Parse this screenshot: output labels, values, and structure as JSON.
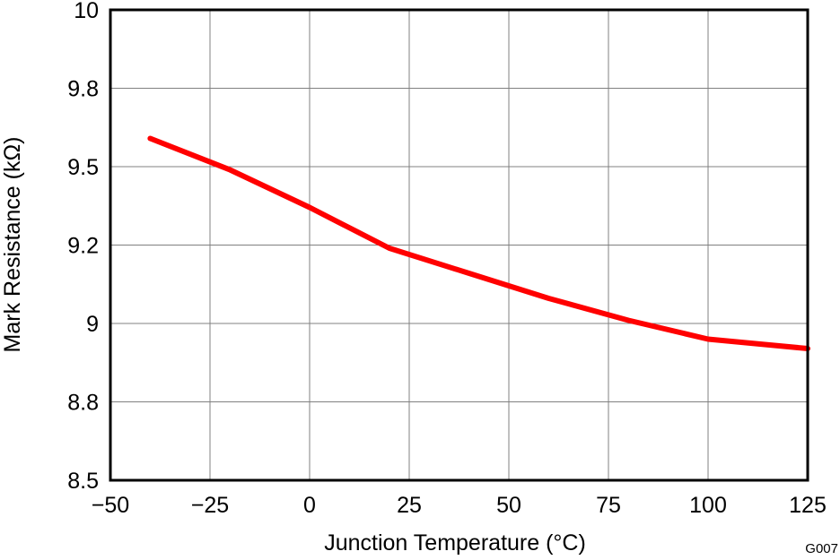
{
  "chart_data": {
    "type": "line",
    "title": "",
    "xlabel": "Junction Temperature (°C)",
    "ylabel": "Mark Resistance (kΩ)",
    "xlim": [
      -50,
      125
    ],
    "ylim": [
      8.5,
      10
    ],
    "x_ticks": [
      -50,
      -25,
      0,
      25,
      50,
      75,
      100,
      125
    ],
    "x_tick_labels": [
      "−50",
      "−25",
      "0",
      "25",
      "50",
      "75",
      "100",
      "125"
    ],
    "y_ticks": [
      8.5,
      8.75,
      9,
      9.25,
      9.5,
      9.75,
      10
    ],
    "y_tick_labels": [
      "8.5",
      "8.8",
      "9",
      "9.2",
      "9.5",
      "9.8",
      "10"
    ],
    "grid": true,
    "series": [
      {
        "color": "#ff0000",
        "x": [
          -40,
          -20,
          0,
          20,
          40,
          60,
          80,
          100,
          125
        ],
        "y": [
          9.59,
          9.49,
          9.37,
          9.24,
          9.16,
          9.08,
          9.01,
          8.95,
          8.92
        ]
      }
    ],
    "figure_id": "G007"
  }
}
